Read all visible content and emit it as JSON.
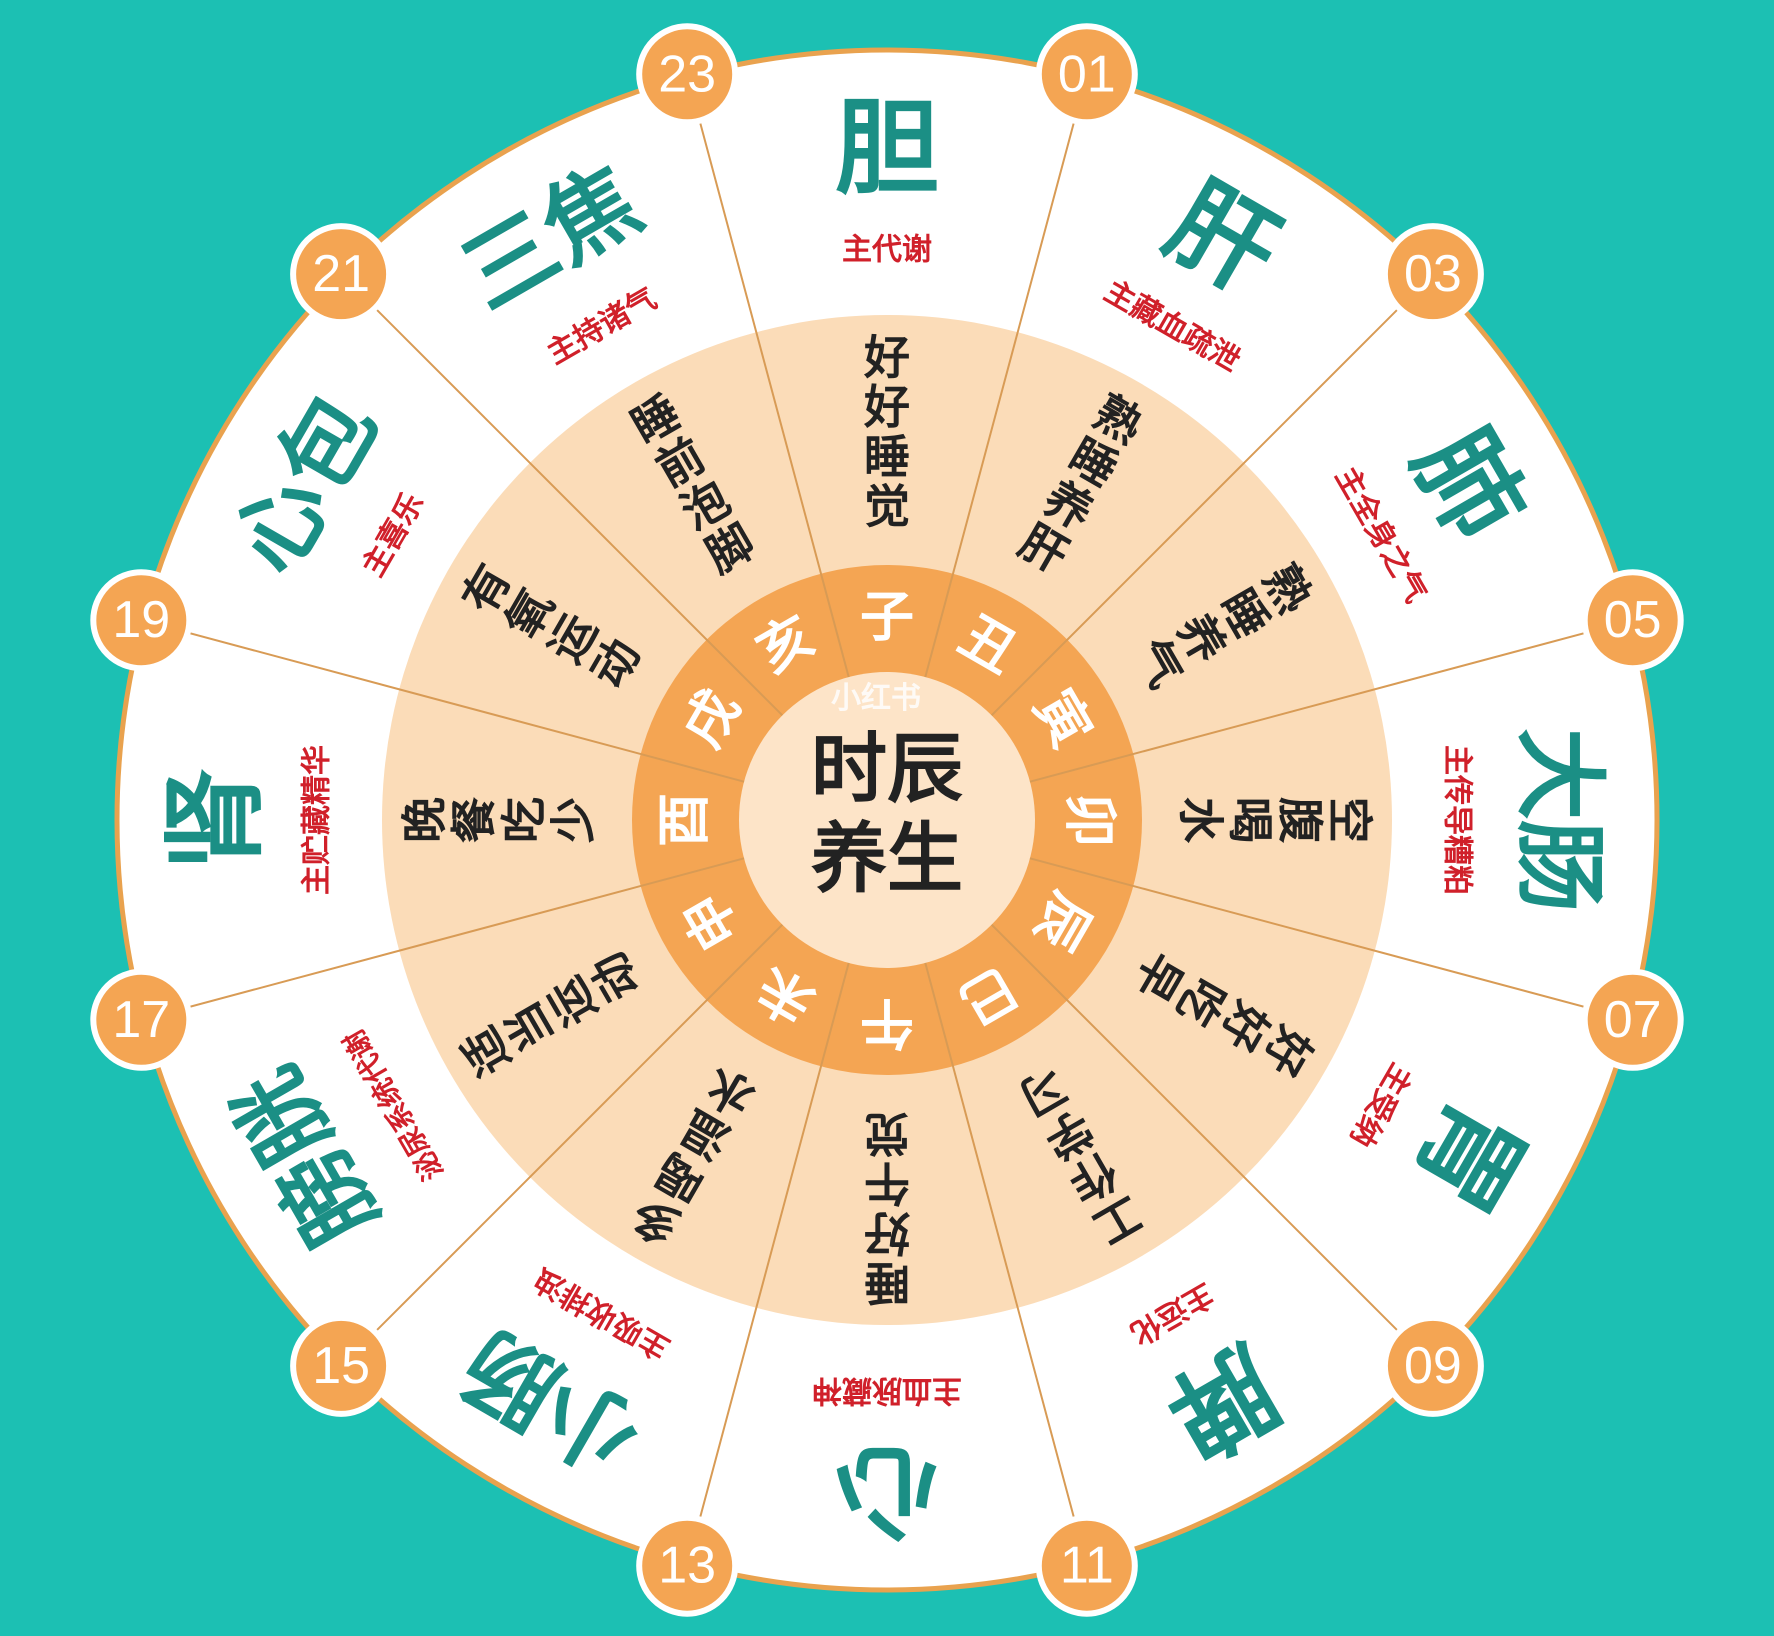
{
  "center": {
    "title_line1": "时辰",
    "title_line2": "养生"
  },
  "watermark": "小红书",
  "colors": {
    "background": "#1cc0b3",
    "outer_ring": "#ffffff",
    "outer_border": "#e9a24e",
    "middle_ring": "#fbdcb8",
    "inner_ring": "#f4a553",
    "core": "#fde4c8",
    "organ_text": "#1b8f85",
    "function_text": "#d0202a",
    "advice_text": "#222222",
    "branch_text": "#ffffff",
    "hour_badge": "#f4a553",
    "hour_badge_border": "#ffffff",
    "hour_text": "#ffffff",
    "divider": "#d89b55",
    "center_text": "#222222"
  },
  "hours": [
    "23",
    "01",
    "03",
    "05",
    "07",
    "09",
    "11",
    "13",
    "15",
    "17",
    "19",
    "21"
  ],
  "segments": [
    {
      "branch": "子",
      "organ": "胆",
      "function": "主代谢",
      "advice": "好好睡觉"
    },
    {
      "branch": "丑",
      "organ": "肝",
      "function": "主藏血疏泄",
      "advice": "熟睡养肝"
    },
    {
      "branch": "寅",
      "organ": "肺",
      "function": "主全身之气",
      "advice": "熟睡养气"
    },
    {
      "branch": "卯",
      "organ": "大肠",
      "function": "主传导糟粕",
      "advice": "空腹喝水"
    },
    {
      "branch": "辰",
      "organ": "胃",
      "function": "主受纳",
      "advice": "好好吃早"
    },
    {
      "branch": "巳",
      "organ": "脾",
      "function": "主运化",
      "advice": "工作学习"
    },
    {
      "branch": "午",
      "organ": "心",
      "function": "主血脉藏神",
      "advice": "睡好午觉"
    },
    {
      "branch": "未",
      "organ": "小肠",
      "function": "主吸收排浊",
      "advice": "多喝温水"
    },
    {
      "branch": "申",
      "organ": "膀胱",
      "function": "泌尿系统代谢",
      "advice": "适当运动"
    },
    {
      "branch": "酉",
      "organ": "肾",
      "function": "主贮藏精华",
      "advice": "晚餐吃少"
    },
    {
      "branch": "戌",
      "organ": "心包",
      "function": "主喜乐",
      "advice": "有氧运动"
    },
    {
      "branch": "亥",
      "organ": "三焦",
      "function": "主持诸气",
      "advice": "睡前泡脚"
    }
  ]
}
